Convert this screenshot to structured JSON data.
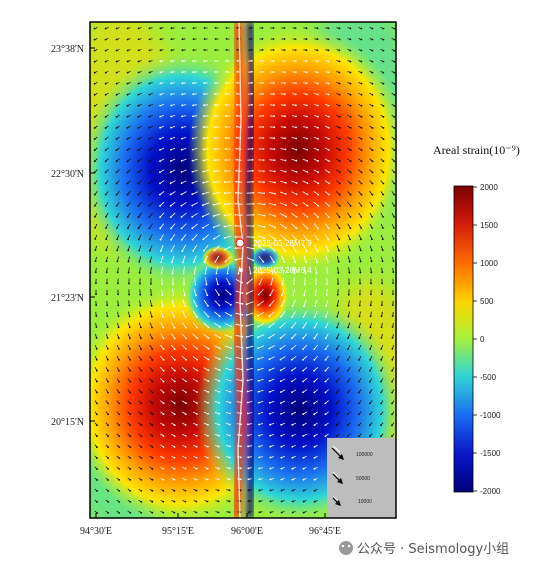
{
  "map": {
    "lat_ticks": [
      "23°38'N",
      "22°30'N",
      "21°23'N",
      "20°15'N"
    ],
    "lon_ticks": [
      "94°30'E",
      "95°15'E",
      "96°00'E",
      "96°45'E"
    ]
  },
  "colorbar": {
    "title": "Areal strain(10⁻⁹)",
    "ticks": [
      "2000",
      "1500",
      "1000",
      "500",
      "0",
      "-500",
      "-1000",
      "-1500",
      "-2000"
    ],
    "colors": [
      "#7a0000",
      "#d21a0a",
      "#ff6a00",
      "#ffd500",
      "#a5f03a",
      "#2fd6d6",
      "#1a6cf0",
      "#0a14c8",
      "#00007a"
    ]
  },
  "earthquakes": [
    {
      "label": "2025-03-28M7.9"
    },
    {
      "label": "2025-03-28M6.4"
    }
  ],
  "reference": {
    "scales": [
      "100000",
      "50000",
      "10000"
    ]
  },
  "watermark": "公众号 · Seismology小组"
}
